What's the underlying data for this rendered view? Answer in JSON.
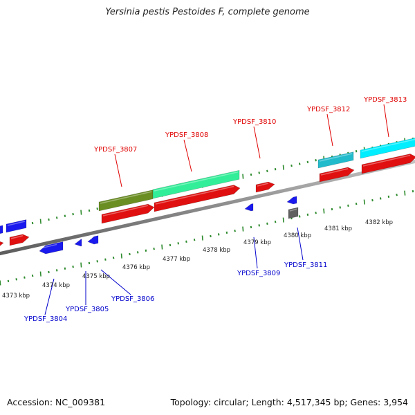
{
  "title": "Yersinia pestis Pestoides F, complete genome",
  "footer": {
    "accession": "Accession: NC_009381",
    "summary": "Topology: circular; Length: 4,517,345 bp; Genes: 3,954"
  },
  "colors": {
    "forward_label": "#e00000",
    "reverse_label": "#0000cc",
    "tick": "#2e8b2e",
    "red": "#e01010",
    "blue": "#1a1aee",
    "green": "#33ee99",
    "olive": "#6b8e23",
    "teal": "#22bbcc",
    "cyan": "#00eeff",
    "gray": "#606060"
  },
  "scale": {
    "kbp_labels": [
      "4373 kbp",
      "4374 kbp",
      "4375 kbp",
      "4376 kbp",
      "4377 kbp",
      "4378 kbp",
      "4379 kbp",
      "4380 kbp",
      "4381 kbp",
      "4382 kbp"
    ]
  },
  "forward_labels": [
    "YPDSF_3807",
    "YPDSF_3808",
    "YPDSF_3810",
    "YPDSF_3812",
    "YPDSF_3813"
  ],
  "reverse_labels": [
    "YPDSF_3804",
    "YPDSF_3805",
    "YPDSF_3806",
    "YPDSF_3809",
    "YPDSF_3811"
  ]
}
